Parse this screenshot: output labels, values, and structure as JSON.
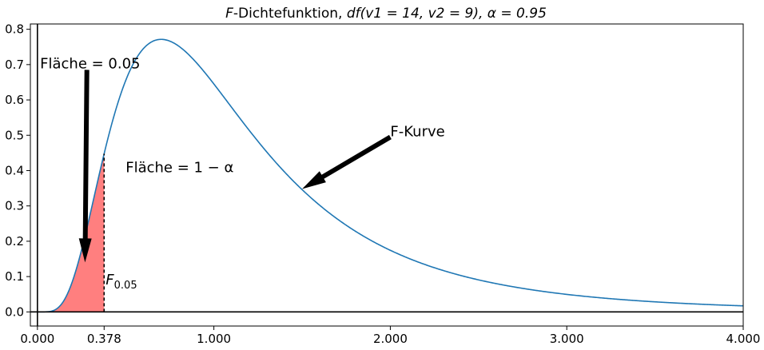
{
  "chart_data": {
    "type": "line",
    "title": {
      "prefix": "F",
      "middle": "-Dichtefunktion, ",
      "df_expr": "df(v1 = 14, v2 = 9), ",
      "alpha_expr": "α = 0.95"
    },
    "xlabel": "",
    "ylabel": "",
    "xlim": [
      -0.04,
      4.0
    ],
    "ylim": [
      -0.04,
      0.815
    ],
    "x_ticks": [
      {
        "value": 0.0,
        "label": "0.000"
      },
      {
        "value": 0.378,
        "label": "0.378"
      },
      {
        "value": 1.0,
        "label": "1.000"
      },
      {
        "value": 2.0,
        "label": "2.000"
      },
      {
        "value": 3.0,
        "label": "3.000"
      },
      {
        "value": 4.0,
        "label": "4.000"
      }
    ],
    "y_ticks": [
      {
        "value": 0.0,
        "label": "0.0"
      },
      {
        "value": 0.1,
        "label": "0.1"
      },
      {
        "value": 0.2,
        "label": "0.2"
      },
      {
        "value": 0.3,
        "label": "0.3"
      },
      {
        "value": 0.4,
        "label": "0.4"
      },
      {
        "value": 0.5,
        "label": "0.5"
      },
      {
        "value": 0.6,
        "label": "0.6"
      },
      {
        "value": 0.7,
        "label": "0.7"
      },
      {
        "value": 0.8,
        "label": "0.8"
      }
    ],
    "grid": false,
    "distribution": {
      "family": "F",
      "df1": 14,
      "df2": 9
    },
    "critical_value": 0.378,
    "critical_label": {
      "base": "F",
      "subscript": "0.05"
    },
    "area_left_label": "Fläche = 0.05",
    "area_right_label": "Fläche = 1 − α",
    "curve_label": "F-Kurve",
    "curve_color": "#1f77b4",
    "fill_color": "#ff7f7f",
    "annotations": [
      {
        "key": "left_area",
        "arrow_from": [
          0.28,
          0.685
        ],
        "arrow_to": [
          0.27,
          0.14
        ]
      },
      {
        "key": "curve",
        "arrow_from": [
          2.0,
          0.495
        ],
        "arrow_to": [
          1.5,
          0.348
        ]
      }
    ]
  }
}
